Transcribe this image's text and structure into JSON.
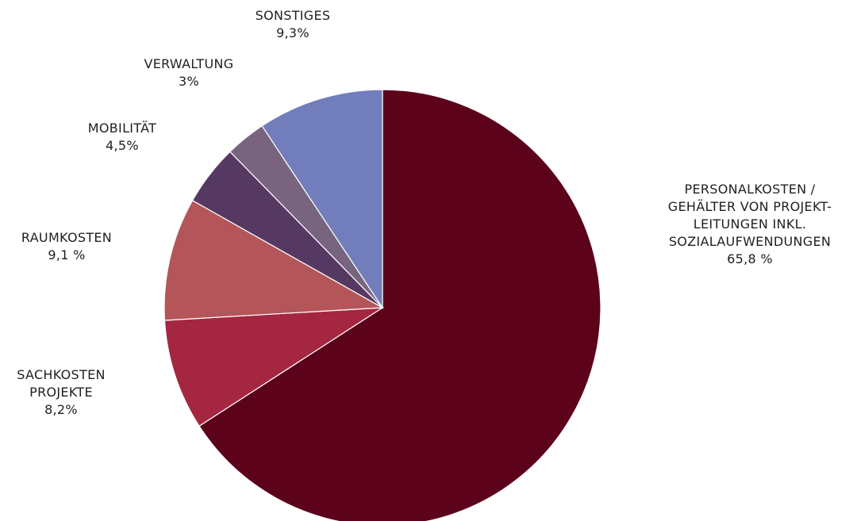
{
  "chart_data": {
    "type": "pie",
    "slices": [
      {
        "key": "personal",
        "label_lines": [
          "PERSONALKOSTEN /",
          "GEHÄLTER VON PROJEKT-",
          "LEITUNGEN INKL.",
          "SOZIALAUFWENDUNGEN"
        ],
        "value_label": "65,8 %",
        "value": 65.8,
        "color": "#5c021b"
      },
      {
        "key": "sachkosten",
        "label_lines": [
          "SACHKOSTEN",
          "PROJEKTE"
        ],
        "value_label": "8,2%",
        "value": 8.2,
        "color": "#a52640"
      },
      {
        "key": "raumkosten",
        "label_lines": [
          "RAUMKOSTEN"
        ],
        "value_label": "9,1 %",
        "value": 9.1,
        "color": "#b45659"
      },
      {
        "key": "mobilitaet",
        "label_lines": [
          "MOBILITÄT"
        ],
        "value_label": "4,5%",
        "value": 4.5,
        "color": "#563962"
      },
      {
        "key": "verwaltung",
        "label_lines": [
          "VERWALTUNG"
        ],
        "value_label": "3%",
        "value": 3,
        "color": "#78647f"
      },
      {
        "key": "sonstiges",
        "label_lines": [
          "SONSTIGES"
        ],
        "value_label": "9,3%",
        "value": 9.3,
        "color": "#727dbc"
      }
    ],
    "start_angle": "12 o'clock",
    "direction": "clockwise",
    "legend": "none"
  }
}
